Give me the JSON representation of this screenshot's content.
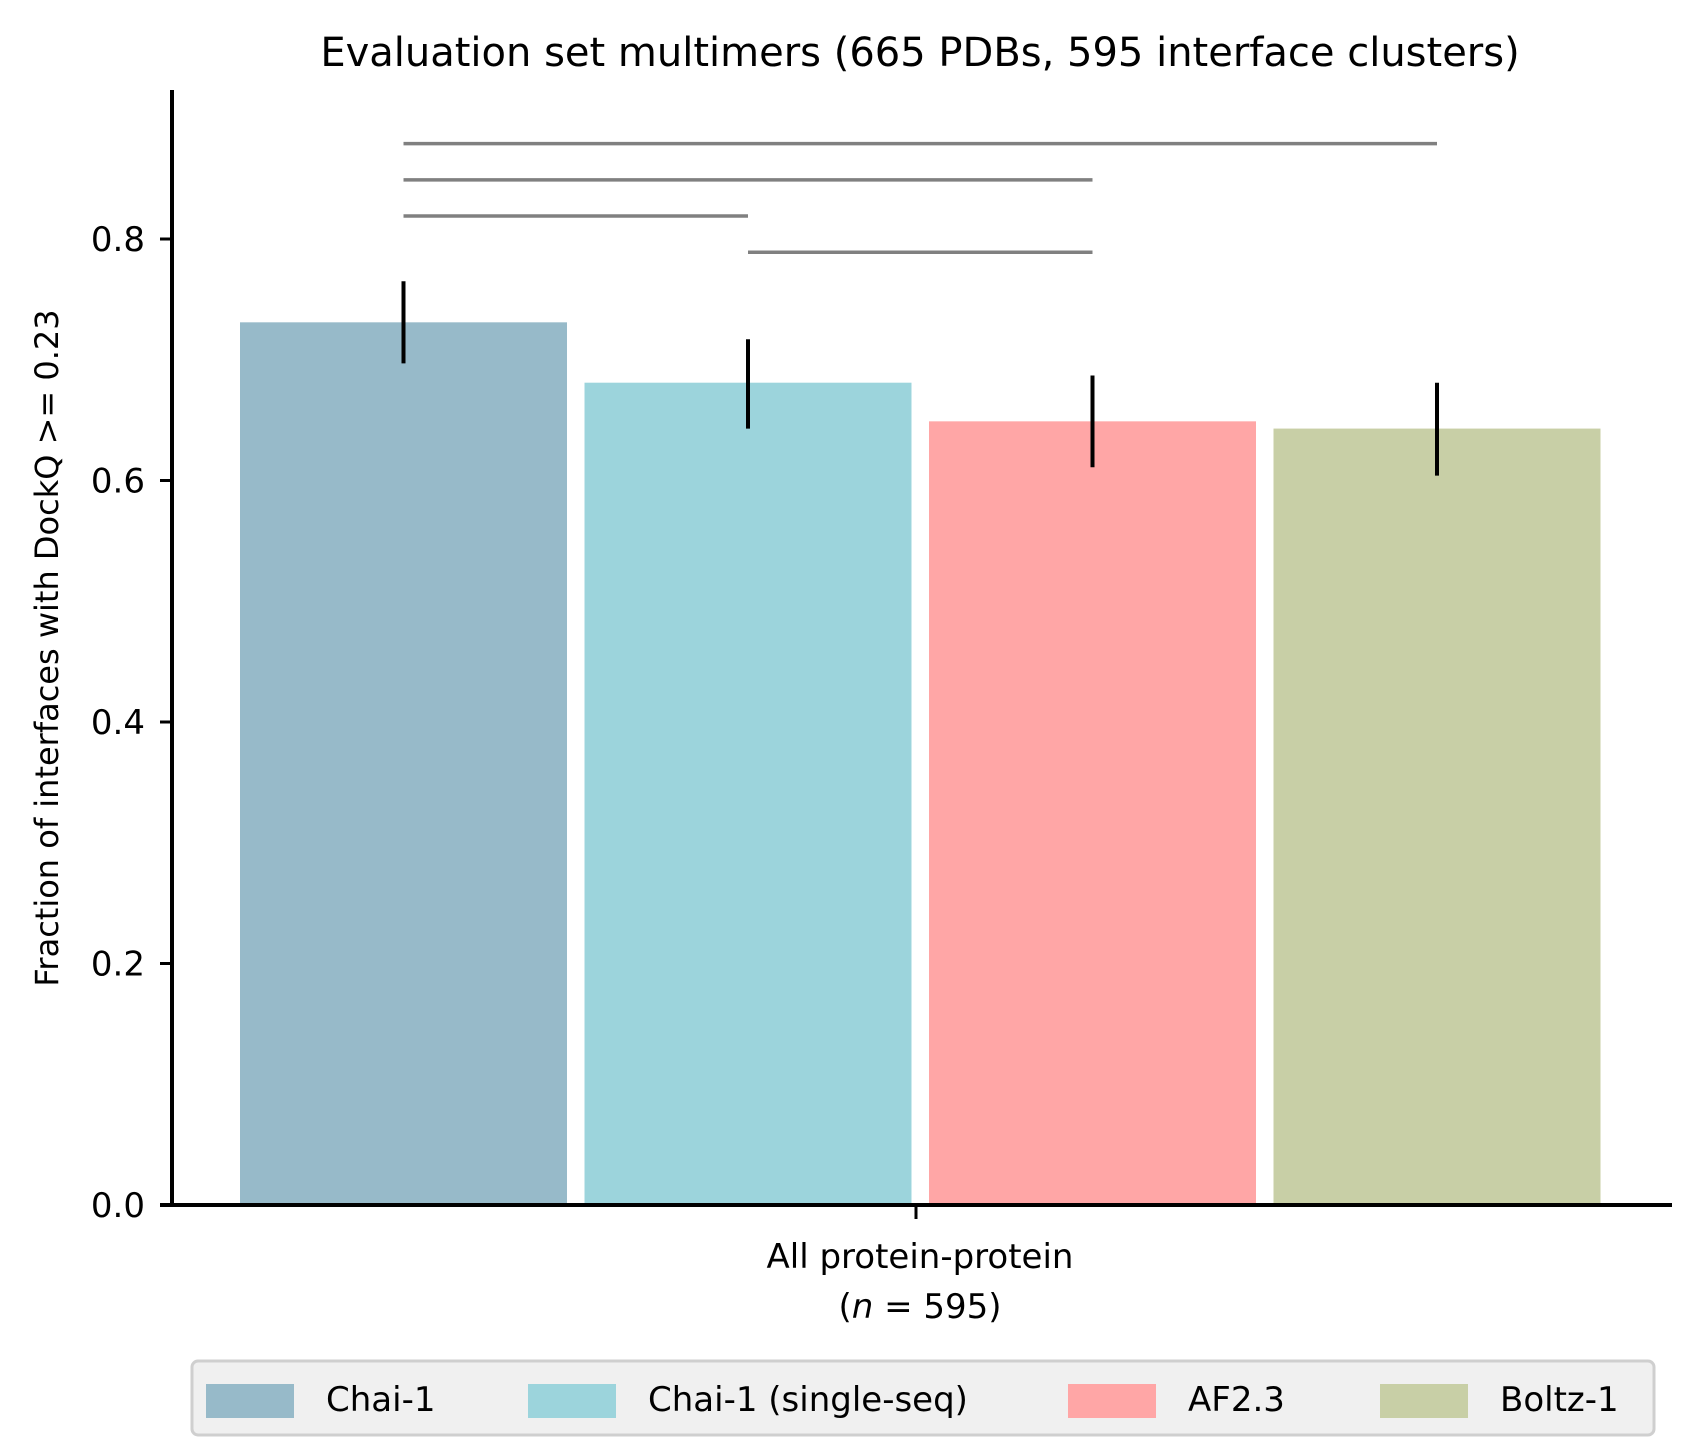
{
  "chart_data": {
    "type": "bar",
    "title": "Evaluation set multimers (665 PDBs, 595 interface clusters)",
    "ylabel": "Fraction of interfaces with DockQ >= 0.23",
    "ylim": [
      0,
      0.93
    ],
    "yticks": [
      0.0,
      0.2,
      0.4,
      0.6,
      0.8
    ],
    "ytick_labels": [
      "0.0",
      "0.2",
      "0.4",
      "0.6",
      "0.8"
    ],
    "category": {
      "line1": "All protein-protein",
      "line2_open": "(",
      "line2_n": "n",
      "line2_rest": " = 595)"
    },
    "series": [
      {
        "name": "Chai-1",
        "value": 0.731,
        "err_low": 0.697,
        "err_high": 0.765,
        "color": "#97bac9"
      },
      {
        "name": "Chai-1 (single-seq)",
        "value": 0.681,
        "err_low": 0.643,
        "err_high": 0.717,
        "color": "#9cd4dc"
      },
      {
        "name": "AF2.3",
        "value": 0.649,
        "err_low": 0.611,
        "err_high": 0.687,
        "color": "#ffa6a6"
      },
      {
        "name": "Boltz-1",
        "value": 0.643,
        "err_low": 0.604,
        "err_high": 0.681,
        "color": "#c8cfa6"
      }
    ],
    "significance_brackets": [
      {
        "from": 0,
        "to": 3,
        "y": 0.879
      },
      {
        "from": 0,
        "to": 2,
        "y": 0.849
      },
      {
        "from": 0,
        "to": 1,
        "y": 0.819
      },
      {
        "from": 1,
        "to": 2,
        "y": 0.789
      }
    ],
    "grid": false,
    "legend_position": "bottom"
  }
}
